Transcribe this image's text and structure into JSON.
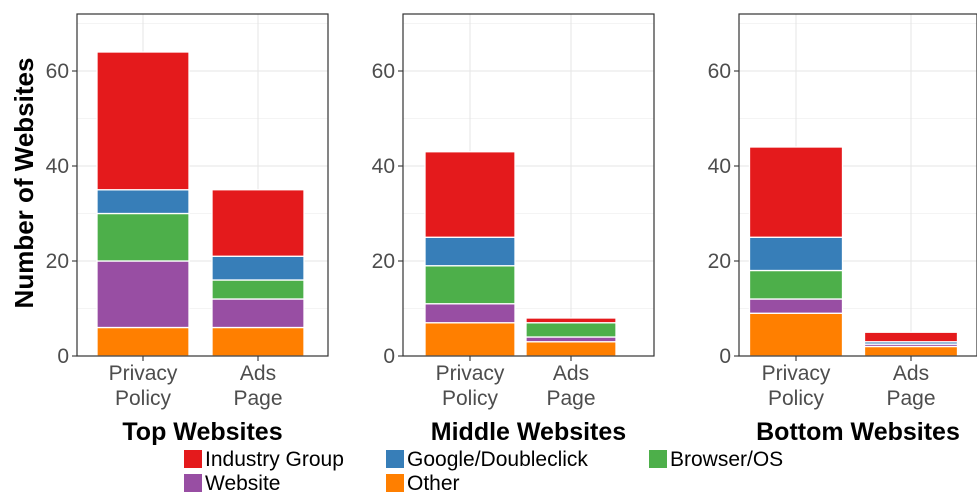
{
  "chart_data": {
    "type": "bar",
    "stacked": true,
    "ylabel": "Number of Websites",
    "ylim": [
      0,
      72
    ],
    "yticks": [
      0,
      20,
      40,
      60
    ],
    "grid": true,
    "legend_position": "bottom",
    "categories": [
      "Privacy Policy",
      "Ads Page"
    ],
    "series_colors": {
      "Industry Group": "#E41A1C",
      "Google/Doubleclick": "#377EB8",
      "Browser/OS": "#4DAF4A",
      "Website": "#984EA3",
      "Other": "#FF7F00"
    },
    "legend": [
      "Industry Group",
      "Google/Doubleclick",
      "Browser/OS",
      "Website",
      "Other"
    ],
    "panels": [
      {
        "title": "Top Websites",
        "series": [
          {
            "name": "Other",
            "values": [
              6,
              6
            ]
          },
          {
            "name": "Website",
            "values": [
              14,
              6
            ]
          },
          {
            "name": "Browser/OS",
            "values": [
              10,
              4
            ]
          },
          {
            "name": "Google/Doubleclick",
            "values": [
              5,
              5
            ]
          },
          {
            "name": "Industry Group",
            "values": [
              29,
              14
            ]
          }
        ]
      },
      {
        "title": "Middle Websites",
        "series": [
          {
            "name": "Other",
            "values": [
              7,
              3
            ]
          },
          {
            "name": "Website",
            "values": [
              4,
              1
            ]
          },
          {
            "name": "Browser/OS",
            "values": [
              8,
              3
            ]
          },
          {
            "name": "Google/Doubleclick",
            "values": [
              6,
              0
            ]
          },
          {
            "name": "Industry Group",
            "values": [
              18,
              1
            ]
          }
        ]
      },
      {
        "title": "Bottom Websites",
        "series": [
          {
            "name": "Other",
            "values": [
              9,
              2
            ]
          },
          {
            "name": "Website",
            "values": [
              3,
              0.5
            ]
          },
          {
            "name": "Browser/OS",
            "values": [
              6,
              0
            ]
          },
          {
            "name": "Google/Doubleclick",
            "values": [
              7,
              0.5
            ]
          },
          {
            "name": "Industry Group",
            "values": [
              19,
              2
            ]
          }
        ]
      }
    ]
  }
}
